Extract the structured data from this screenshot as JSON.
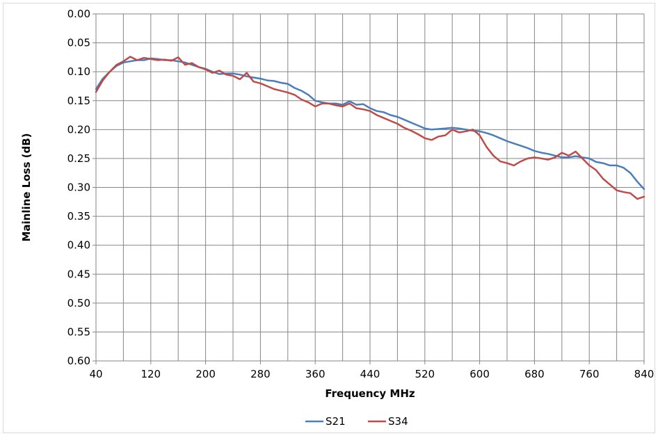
{
  "chart_data": {
    "type": "line",
    "title": "",
    "xlabel": "Frequency MHz",
    "ylabel": "Mainline Loss (dB)",
    "xlim": [
      40,
      840
    ],
    "ylim": [
      0.6,
      0.0
    ],
    "y_inverted": true,
    "xticks": [
      "40",
      "120",
      "200",
      "280",
      "360",
      "440",
      "520",
      "600",
      "680",
      "760",
      "840"
    ],
    "yticks": [
      "0.00",
      "0.05",
      "0.10",
      "0.15",
      "0.20",
      "0.25",
      "0.30",
      "0.35",
      "0.40",
      "0.45",
      "0.50",
      "0.55",
      "0.60"
    ],
    "x_minor_step": 40,
    "grid": true,
    "legend_position": "bottom",
    "series": [
      {
        "name": "S21",
        "color": "#4a7ebb",
        "x": [
          40,
          50,
          60,
          70,
          80,
          90,
          100,
          110,
          120,
          130,
          140,
          150,
          160,
          170,
          180,
          190,
          200,
          210,
          220,
          230,
          240,
          250,
          260,
          270,
          280,
          290,
          300,
          310,
          320,
          330,
          340,
          350,
          360,
          370,
          380,
          390,
          400,
          410,
          420,
          430,
          440,
          450,
          460,
          470,
          480,
          490,
          500,
          510,
          520,
          530,
          540,
          550,
          560,
          570,
          580,
          590,
          600,
          610,
          620,
          630,
          640,
          650,
          660,
          670,
          680,
          690,
          700,
          710,
          720,
          730,
          740,
          750,
          760,
          770,
          780,
          790,
          800,
          810,
          820,
          830,
          840
        ],
        "y": [
          0.13,
          0.112,
          0.1,
          0.09,
          0.084,
          0.082,
          0.08,
          0.08,
          0.077,
          0.078,
          0.08,
          0.08,
          0.082,
          0.084,
          0.088,
          0.092,
          0.095,
          0.1,
          0.104,
          0.103,
          0.103,
          0.105,
          0.108,
          0.11,
          0.112,
          0.115,
          0.116,
          0.119,
          0.121,
          0.128,
          0.133,
          0.14,
          0.15,
          0.153,
          0.155,
          0.155,
          0.157,
          0.151,
          0.157,
          0.156,
          0.163,
          0.168,
          0.17,
          0.175,
          0.178,
          0.183,
          0.188,
          0.193,
          0.198,
          0.2,
          0.199,
          0.198,
          0.197,
          0.198,
          0.2,
          0.202,
          0.203,
          0.206,
          0.21,
          0.215,
          0.22,
          0.224,
          0.228,
          0.232,
          0.237,
          0.24,
          0.242,
          0.245,
          0.248,
          0.248,
          0.246,
          0.248,
          0.25,
          0.256,
          0.258,
          0.262,
          0.262,
          0.266,
          0.275,
          0.29,
          0.303
        ]
      },
      {
        "name": "S34",
        "color": "#be4b48",
        "x": [
          40,
          50,
          60,
          70,
          80,
          90,
          100,
          110,
          120,
          130,
          140,
          150,
          160,
          170,
          180,
          190,
          200,
          210,
          220,
          230,
          240,
          250,
          260,
          270,
          280,
          290,
          300,
          310,
          320,
          330,
          340,
          350,
          360,
          370,
          380,
          390,
          400,
          410,
          420,
          430,
          440,
          450,
          460,
          470,
          480,
          490,
          500,
          510,
          520,
          530,
          540,
          550,
          560,
          570,
          580,
          590,
          600,
          610,
          620,
          630,
          640,
          650,
          660,
          670,
          680,
          690,
          700,
          710,
          720,
          730,
          740,
          750,
          760,
          770,
          780,
          790,
          800,
          810,
          820,
          830,
          840
        ],
        "y": [
          0.135,
          0.115,
          0.1,
          0.088,
          0.082,
          0.074,
          0.08,
          0.076,
          0.078,
          0.08,
          0.079,
          0.081,
          0.075,
          0.088,
          0.085,
          0.092,
          0.096,
          0.102,
          0.098,
          0.105,
          0.107,
          0.113,
          0.102,
          0.117,
          0.12,
          0.125,
          0.13,
          0.133,
          0.136,
          0.14,
          0.148,
          0.153,
          0.16,
          0.155,
          0.155,
          0.158,
          0.16,
          0.155,
          0.163,
          0.165,
          0.168,
          0.175,
          0.18,
          0.185,
          0.19,
          0.197,
          0.202,
          0.208,
          0.215,
          0.218,
          0.212,
          0.21,
          0.2,
          0.205,
          0.203,
          0.2,
          0.21,
          0.23,
          0.245,
          0.255,
          0.258,
          0.262,
          0.255,
          0.25,
          0.248,
          0.25,
          0.252,
          0.248,
          0.24,
          0.245,
          0.238,
          0.25,
          0.262,
          0.27,
          0.285,
          0.295,
          0.305,
          0.308,
          0.31,
          0.32,
          0.316
        ]
      }
    ]
  }
}
